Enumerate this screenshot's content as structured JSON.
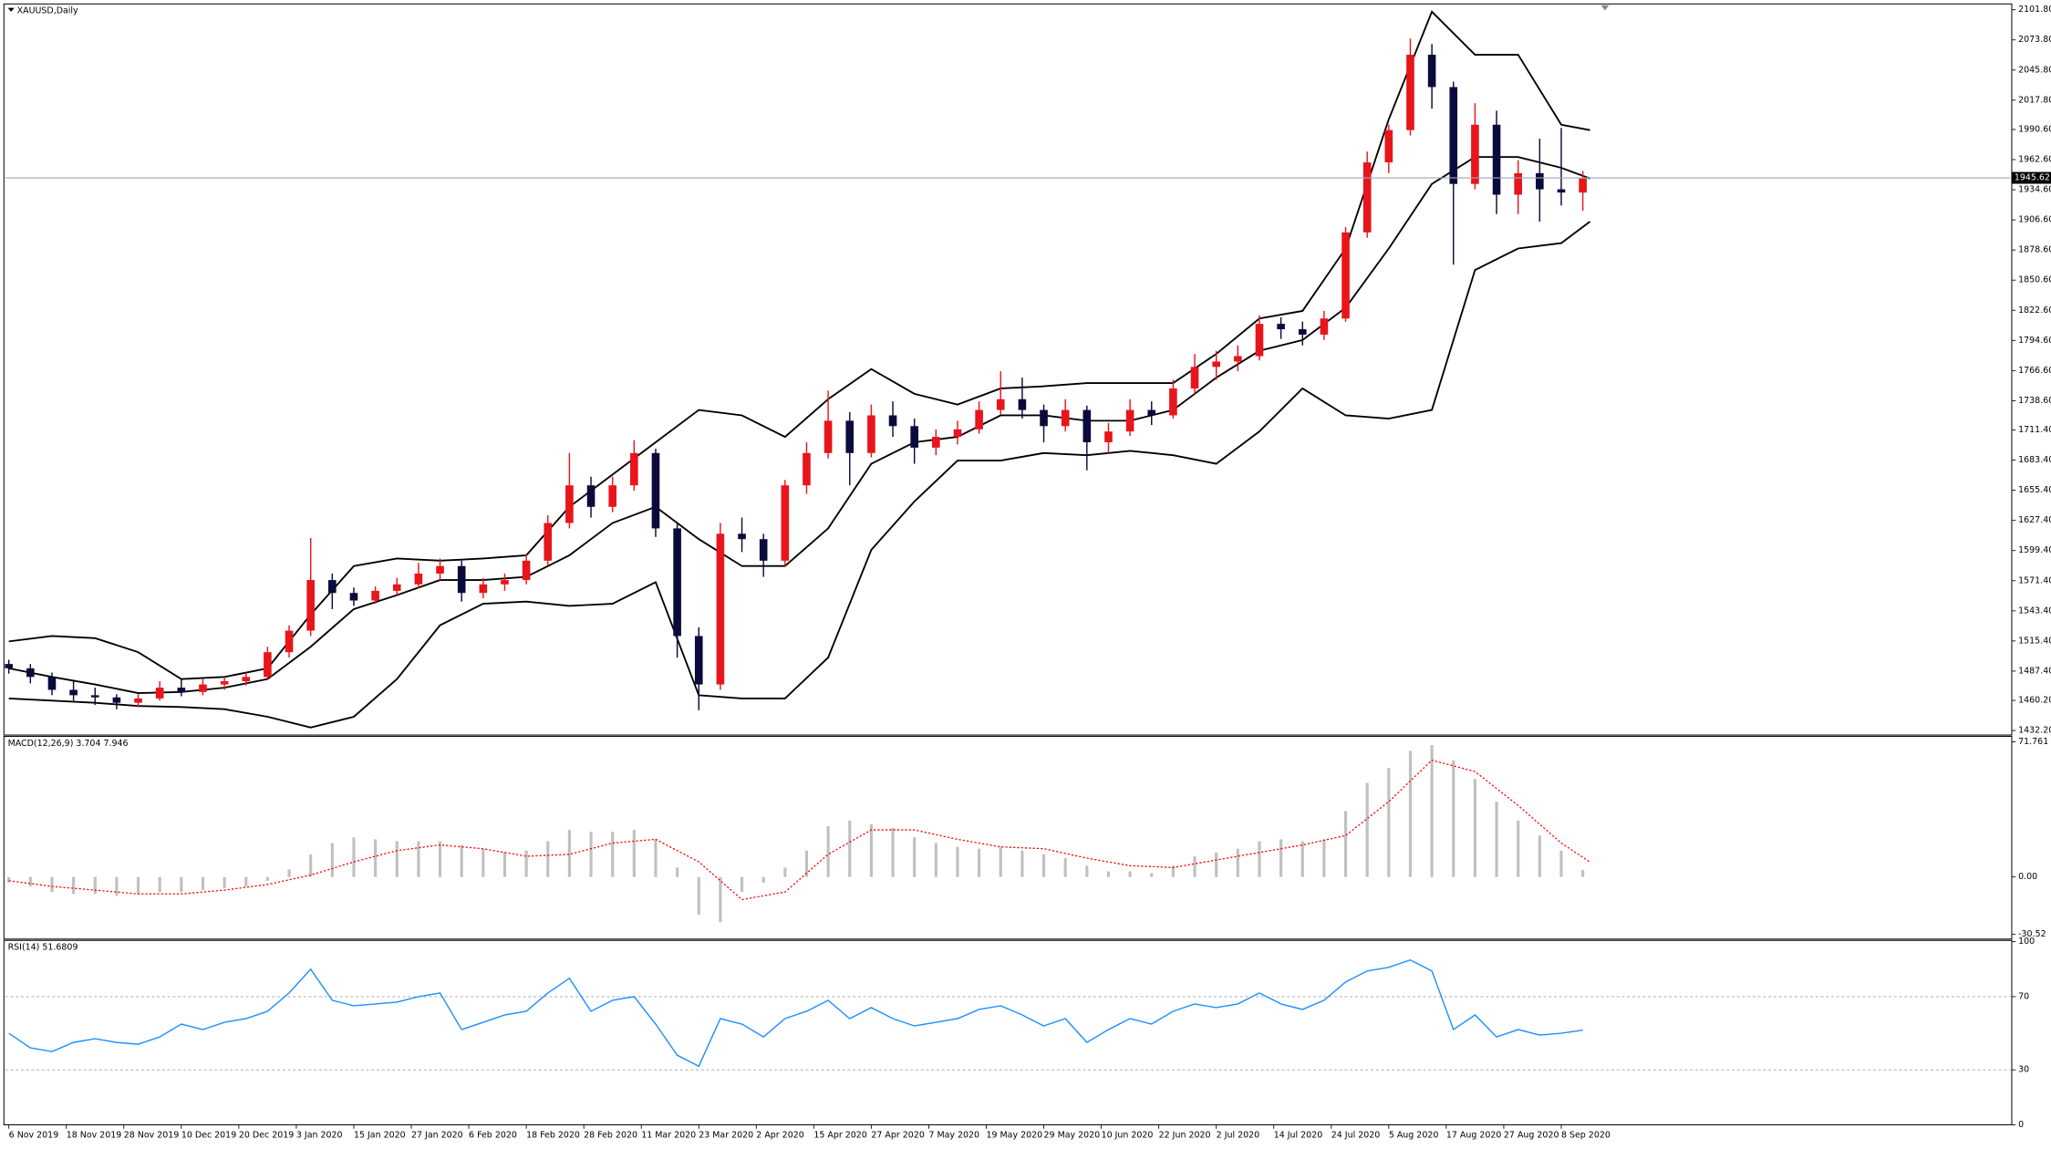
{
  "chart_data": [
    {
      "type": "candlestick",
      "title": "XAUUSD,Daily",
      "up_color": "#e8151b",
      "down_color": "#0a0a3c",
      "band_color": "#000000",
      "last_price_color": "#9aa6b8",
      "xlim": [
        -0.5,
        278.5
      ],
      "ylim": [
        1428,
        2106
      ],
      "yticks": [
        {
          "value": 1432.2,
          "label": "1432.20"
        },
        {
          "value": 1460.2,
          "label": "1460.20"
        },
        {
          "value": 1487.4,
          "label": "1487.40"
        },
        {
          "value": 1515.4,
          "label": "1515.40"
        },
        {
          "value": 1543.4,
          "label": "1543.40"
        },
        {
          "value": 1571.4,
          "label": "1571.40"
        },
        {
          "value": 1599.4,
          "label": "1599.40"
        },
        {
          "value": 1627.4,
          "label": "1627.40"
        },
        {
          "value": 1655.4,
          "label": "1655.40"
        },
        {
          "value": 1683.4,
          "label": "1683.40"
        },
        {
          "value": 1711.4,
          "label": "1711.40"
        },
        {
          "value": 1738.6,
          "label": "1738.60"
        },
        {
          "value": 1766.6,
          "label": "1766.60"
        },
        {
          "value": 1794.6,
          "label": "1794.60"
        },
        {
          "value": 1822.6,
          "label": "1822.60"
        },
        {
          "value": 1850.6,
          "label": "1850.60"
        },
        {
          "value": 1878.6,
          "label": "1878.60"
        },
        {
          "value": 1906.6,
          "label": "1906.60"
        },
        {
          "value": 1934.6,
          "label": "1934.60"
        },
        {
          "value": 1962.6,
          "label": "1962.60"
        },
        {
          "value": 1990.6,
          "label": "1990.60"
        },
        {
          "value": 2017.8,
          "label": "2017.80"
        },
        {
          "value": 2045.8,
          "label": "2045.80"
        },
        {
          "value": 2073.8,
          "label": "2073.80"
        },
        {
          "value": 2101.8,
          "label": "2101.80"
        }
      ],
      "last_price": 1945.62,
      "x": [
        0,
        3,
        6,
        9,
        12,
        15,
        18,
        21,
        24,
        27,
        30,
        33,
        36,
        39,
        42,
        45,
        48,
        51,
        54,
        57,
        60,
        63,
        66,
        69,
        72,
        75,
        78,
        81,
        84,
        87,
        90,
        93,
        96,
        99,
        102,
        105,
        108,
        111,
        114,
        117,
        120,
        123,
        126,
        129,
        132,
        135,
        138,
        141,
        144,
        147,
        150,
        153,
        156,
        159,
        162,
        165,
        168,
        171,
        174,
        177,
        180,
        183,
        186,
        189,
        192,
        195,
        198,
        201,
        204,
        207,
        210,
        213,
        216,
        219
      ],
      "ohlc": [
        [
          1494,
          1498,
          1485,
          1490
        ],
        [
          1490,
          1494,
          1476,
          1482
        ],
        [
          1482,
          1486,
          1465,
          1470
        ],
        [
          1470,
          1478,
          1460,
          1465
        ],
        [
          1465,
          1472,
          1456,
          1463
        ],
        [
          1463,
          1466,
          1452,
          1458
        ],
        [
          1458,
          1466,
          1454,
          1462
        ],
        [
          1462,
          1478,
          1460,
          1472
        ],
        [
          1472,
          1480,
          1464,
          1468
        ],
        [
          1468,
          1480,
          1465,
          1475
        ],
        [
          1475,
          1482,
          1470,
          1478
        ],
        [
          1478,
          1486,
          1474,
          1482
        ],
        [
          1482,
          1510,
          1480,
          1505
        ],
        [
          1505,
          1530,
          1500,
          1525
        ],
        [
          1525,
          1611,
          1520,
          1572
        ],
        [
          1572,
          1578,
          1545,
          1560
        ],
        [
          1560,
          1565,
          1548,
          1553
        ],
        [
          1553,
          1566,
          1550,
          1562
        ],
        [
          1562,
          1574,
          1558,
          1568
        ],
        [
          1568,
          1588,
          1564,
          1578
        ],
        [
          1578,
          1592,
          1572,
          1585
        ],
        [
          1585,
          1590,
          1552,
          1560
        ],
        [
          1560,
          1574,
          1555,
          1568
        ],
        [
          1568,
          1578,
          1562,
          1572
        ],
        [
          1572,
          1596,
          1568,
          1590
        ],
        [
          1590,
          1632,
          1586,
          1625
        ],
        [
          1625,
          1690,
          1620,
          1660
        ],
        [
          1660,
          1668,
          1630,
          1640
        ],
        [
          1640,
          1668,
          1635,
          1660
        ],
        [
          1660,
          1702,
          1655,
          1690
        ],
        [
          1690,
          1694,
          1612,
          1620
        ],
        [
          1620,
          1626,
          1500,
          1520
        ],
        [
          1520,
          1528,
          1451,
          1475
        ],
        [
          1475,
          1625,
          1470,
          1615
        ],
        [
          1615,
          1630,
          1598,
          1610
        ],
        [
          1610,
          1615,
          1575,
          1590
        ],
        [
          1590,
          1665,
          1585,
          1660
        ],
        [
          1660,
          1700,
          1652,
          1690
        ],
        [
          1690,
          1748,
          1685,
          1720
        ],
        [
          1720,
          1728,
          1660,
          1690
        ],
        [
          1690,
          1735,
          1686,
          1725
        ],
        [
          1725,
          1738,
          1705,
          1715
        ],
        [
          1715,
          1722,
          1680,
          1695
        ],
        [
          1695,
          1712,
          1688,
          1705
        ],
        [
          1705,
          1720,
          1698,
          1712
        ],
        [
          1712,
          1738,
          1708,
          1730
        ],
        [
          1730,
          1766,
          1726,
          1740
        ],
        [
          1740,
          1760,
          1722,
          1730
        ],
        [
          1730,
          1735,
          1700,
          1715
        ],
        [
          1715,
          1740,
          1710,
          1730
        ],
        [
          1730,
          1734,
          1674,
          1700
        ],
        [
          1700,
          1718,
          1690,
          1710
        ],
        [
          1710,
          1740,
          1706,
          1730
        ],
        [
          1730,
          1738,
          1716,
          1725
        ],
        [
          1725,
          1758,
          1722,
          1750
        ],
        [
          1750,
          1782,
          1745,
          1770
        ],
        [
          1770,
          1785,
          1758,
          1775
        ],
        [
          1775,
          1790,
          1766,
          1780
        ],
        [
          1780,
          1818,
          1776,
          1810
        ],
        [
          1810,
          1816,
          1796,
          1805
        ],
        [
          1805,
          1812,
          1790,
          1800
        ],
        [
          1800,
          1822,
          1795,
          1815
        ],
        [
          1815,
          1900,
          1812,
          1895
        ],
        [
          1895,
          1970,
          1890,
          1960
        ],
        [
          1960,
          1995,
          1950,
          1990
        ],
        [
          1990,
          2075,
          1985,
          2060
        ],
        [
          2060,
          2070,
          2010,
          2030
        ],
        [
          2030,
          2035,
          1865,
          1940
        ],
        [
          1940,
          2015,
          1935,
          1995
        ],
        [
          1995,
          2008,
          1912,
          1930
        ],
        [
          1930,
          1962,
          1912,
          1950
        ],
        [
          1950,
          1982,
          1905,
          1935
        ],
        [
          1935,
          1992,
          1920,
          1932
        ],
        [
          1932,
          1952,
          1915,
          1945
        ]
      ],
      "bands": {
        "x": [
          0,
          6,
          12,
          18,
          24,
          30,
          36,
          42,
          48,
          54,
          60,
          66,
          72,
          78,
          84,
          90,
          96,
          102,
          108,
          114,
          120,
          126,
          132,
          138,
          144,
          150,
          156,
          162,
          168,
          174,
          180,
          186,
          192,
          198,
          204,
          210,
          216,
          220
        ],
        "upper": [
          1515,
          1520,
          1518,
          1505,
          1480,
          1482,
          1490,
          1540,
          1585,
          1592,
          1590,
          1592,
          1595,
          1640,
          1670,
          1700,
          1730,
          1725,
          1705,
          1740,
          1768,
          1745,
          1735,
          1750,
          1752,
          1755,
          1755,
          1755,
          1782,
          1815,
          1822,
          1880,
          2000,
          2100,
          2060,
          2060,
          1995,
          1990
        ],
        "middle": [
          1490,
          1482,
          1475,
          1467,
          1468,
          1472,
          1480,
          1510,
          1545,
          1558,
          1572,
          1572,
          1575,
          1595,
          1625,
          1640,
          1610,
          1585,
          1585,
          1620,
          1680,
          1700,
          1705,
          1725,
          1725,
          1720,
          1720,
          1730,
          1760,
          1785,
          1795,
          1825,
          1880,
          1940,
          1965,
          1965,
          1955,
          1945
        ],
        "lower": [
          1462,
          1460,
          1458,
          1455,
          1454,
          1452,
          1445,
          1435,
          1445,
          1480,
          1530,
          1550,
          1552,
          1548,
          1550,
          1570,
          1465,
          1462,
          1462,
          1500,
          1600,
          1645,
          1683,
          1683,
          1690,
          1688,
          1692,
          1688,
          1680,
          1710,
          1750,
          1725,
          1722,
          1730,
          1860,
          1880,
          1885,
          1905
        ]
      }
    },
    {
      "type": "macd",
      "title": "MACD(12,26,9) 3.704 7.946",
      "color": "#c0c0c0",
      "signal_color": "#ff0000",
      "xlim": [
        -0.5,
        278.5
      ],
      "ylim": [
        -33,
        74
      ],
      "yticks": [
        -30.52,
        {
          "value": 0,
          "label": "0.00"
        },
        71.761
      ],
      "x": [
        0,
        3,
        6,
        9,
        12,
        15,
        18,
        21,
        24,
        27,
        30,
        33,
        36,
        39,
        42,
        45,
        48,
        51,
        54,
        57,
        60,
        63,
        66,
        69,
        72,
        75,
        78,
        81,
        84,
        87,
        90,
        93,
        96,
        99,
        102,
        105,
        108,
        111,
        114,
        117,
        120,
        123,
        126,
        129,
        132,
        135,
        138,
        141,
        144,
        147,
        150,
        153,
        156,
        159,
        162,
        165,
        168,
        171,
        174,
        177,
        180,
        183,
        186,
        189,
        192,
        195,
        198,
        201,
        204,
        207,
        210,
        213,
        216,
        219
      ],
      "values": [
        -3,
        -5,
        -8,
        -9,
        -9,
        -10,
        -9,
        -8,
        -8,
        -7,
        -6,
        -5,
        -2,
        4,
        12,
        18,
        21,
        20,
        19,
        19,
        19,
        17,
        15,
        13,
        14,
        19,
        25,
        24,
        24,
        25,
        20,
        5,
        -20,
        -24,
        -8,
        -3,
        5,
        14,
        27,
        30,
        28,
        26,
        21,
        18,
        16,
        15,
        16,
        14,
        12,
        10,
        6,
        3,
        3,
        2,
        6,
        11,
        13,
        15,
        19,
        20,
        19,
        20,
        35,
        50,
        58,
        67,
        70,
        62,
        52,
        40,
        30,
        22,
        14,
        3.704
      ],
      "signal": {
        "x": [
          0,
          6,
          12,
          18,
          24,
          30,
          36,
          42,
          48,
          54,
          60,
          66,
          72,
          78,
          84,
          90,
          96,
          102,
          108,
          114,
          120,
          126,
          132,
          138,
          144,
          150,
          156,
          162,
          168,
          174,
          180,
          186,
          192,
          198,
          204,
          210,
          216,
          220
        ],
        "values": [
          -2,
          -5,
          -7,
          -9,
          -9,
          -7,
          -4,
          1,
          8,
          14,
          17,
          15,
          11,
          12,
          18,
          20,
          8,
          -12,
          -8,
          12,
          25,
          25,
          20,
          16,
          15,
          10,
          6,
          5,
          9,
          13,
          17,
          22,
          40,
          62,
          56,
          38,
          18,
          7.946
        ]
      }
    },
    {
      "type": "line",
      "title": "RSI(14) 51.6809",
      "color": "#1e90ff",
      "level_color": "#a0a0a0",
      "xlim": [
        -0.5,
        278.5
      ],
      "ylim": [
        0,
        100
      ],
      "yticks": [
        0,
        30,
        70,
        100
      ],
      "levels": [
        70,
        30
      ],
      "xticks": [
        {
          "value": 0,
          "label": "6 Nov 2019"
        },
        {
          "value": 8,
          "label": "18 Nov 2019"
        },
        {
          "value": 16,
          "label": "28 Nov 2019"
        },
        {
          "value": 24,
          "label": "10 Dec 2019"
        },
        {
          "value": 32,
          "label": "20 Dec 2019"
        },
        {
          "value": 40,
          "label": "3 Jan 2020"
        },
        {
          "value": 48,
          "label": "15 Jan 2020"
        },
        {
          "value": 56,
          "label": "27 Jan 2020"
        },
        {
          "value": 64,
          "label": "6 Feb 2020"
        },
        {
          "value": 72,
          "label": "18 Feb 2020"
        },
        {
          "value": 80,
          "label": "28 Feb 2020"
        },
        {
          "value": 88,
          "label": "11 Mar 2020"
        },
        {
          "value": 96,
          "label": "23 Mar 2020"
        },
        {
          "value": 104,
          "label": "2 Apr 2020"
        },
        {
          "value": 112,
          "label": "15 Apr 2020"
        },
        {
          "value": 120,
          "label": "27 Apr 2020"
        },
        {
          "value": 128,
          "label": "7 May 2020"
        },
        {
          "value": 136,
          "label": "19 May 2020"
        },
        {
          "value": 144,
          "label": "29 May 2020"
        },
        {
          "value": 152,
          "label": "10 Jun 2020"
        },
        {
          "value": 160,
          "label": "22 Jun 2020"
        },
        {
          "value": 168,
          "label": "2 Jul 2020"
        },
        {
          "value": 176,
          "label": "14 Jul 2020"
        },
        {
          "value": 184,
          "label": "24 Jul 2020"
        },
        {
          "value": 192,
          "label": "5 Aug 2020"
        },
        {
          "value": 200,
          "label": "17 Aug 2020"
        },
        {
          "value": 208,
          "label": "27 Aug 2020"
        },
        {
          "value": 216,
          "label": "8 Sep 2020"
        }
      ],
      "x": [
        0,
        3,
        6,
        9,
        12,
        15,
        18,
        21,
        24,
        27,
        30,
        33,
        36,
        39,
        42,
        45,
        48,
        51,
        54,
        57,
        60,
        63,
        66,
        69,
        72,
        75,
        78,
        81,
        84,
        87,
        90,
        93,
        96,
        99,
        102,
        105,
        108,
        111,
        114,
        117,
        120,
        123,
        126,
        129,
        132,
        135,
        138,
        141,
        144,
        147,
        150,
        153,
        156,
        159,
        162,
        165,
        168,
        171,
        174,
        177,
        180,
        183,
        186,
        189,
        192,
        195,
        198,
        201,
        204,
        207,
        210,
        213,
        216,
        219
      ],
      "values": [
        50,
        42,
        40,
        45,
        47,
        45,
        44,
        48,
        55,
        52,
        56,
        58,
        62,
        72,
        85,
        68,
        65,
        66,
        67,
        70,
        72,
        52,
        56,
        60,
        62,
        72,
        80,
        62,
        68,
        70,
        55,
        38,
        32,
        58,
        55,
        48,
        58,
        62,
        68,
        58,
        64,
        58,
        54,
        56,
        58,
        63,
        65,
        60,
        54,
        58,
        45,
        52,
        58,
        55,
        62,
        66,
        64,
        66,
        72,
        66,
        63,
        68,
        78,
        84,
        86,
        90,
        84,
        52,
        60,
        48,
        52,
        49,
        50,
        51.6809
      ]
    }
  ]
}
